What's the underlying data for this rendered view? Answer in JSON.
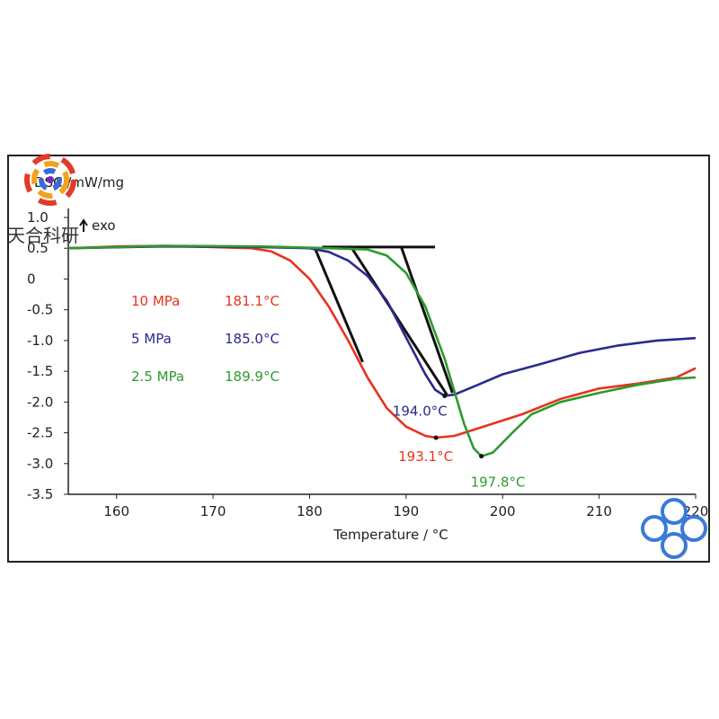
{
  "watermark": {
    "text": "天合科研"
  },
  "chart_data": {
    "type": "line",
    "title": "",
    "ylabel": "DSC /mW/mg",
    "xlabel": "Temperature / °C",
    "exo_label": "exo",
    "xlim": [
      155,
      220
    ],
    "ylim": [
      -3.5,
      1.0
    ],
    "x_ticks": [
      160,
      170,
      180,
      190,
      200,
      210,
      220
    ],
    "x_tick_labels": [
      "160",
      "170",
      "180",
      "190",
      "200",
      "210",
      "220"
    ],
    "y_ticks": [
      1.0,
      0.5,
      0,
      -0.5,
      -1.0,
      -1.5,
      -2.0,
      -2.5,
      -3.0,
      -3.5
    ],
    "y_tick_labels": [
      "1.0",
      "0.5",
      "0",
      "-0.5",
      "-1.0",
      "-1.5",
      "-2.0",
      "-2.5",
      "-3.0",
      "-3.5"
    ],
    "grid": false,
    "legend": [
      {
        "pressure": "10 MPa",
        "onset": "181.1°C",
        "color": "#e8321e"
      },
      {
        "pressure": "5 MPa",
        "onset": "185.0°C",
        "color": "#2a2a8c"
      },
      {
        "pressure": "2.5 MPa",
        "onset": "189.9°C",
        "color": "#2e9a2e"
      }
    ],
    "series": [
      {
        "color": "#e8321e",
        "points": [
          [
            155,
            0.5
          ],
          [
            160,
            0.53
          ],
          [
            165,
            0.54
          ],
          [
            170,
            0.52
          ],
          [
            174,
            0.5
          ],
          [
            176,
            0.45
          ],
          [
            178,
            0.3
          ],
          [
            180,
            0.0
          ],
          [
            182,
            -0.45
          ],
          [
            184,
            -1.0
          ],
          [
            186,
            -1.6
          ],
          [
            188,
            -2.1
          ],
          [
            190,
            -2.4
          ],
          [
            192,
            -2.55
          ],
          [
            193.1,
            -2.58
          ],
          [
            195,
            -2.55
          ],
          [
            198,
            -2.4
          ],
          [
            202,
            -2.2
          ],
          [
            206,
            -1.95
          ],
          [
            210,
            -1.78
          ],
          [
            214,
            -1.7
          ],
          [
            218,
            -1.6
          ],
          [
            220,
            -1.45
          ]
        ]
      },
      {
        "color": "#2a2a8c",
        "points": [
          [
            155,
            0.5
          ],
          [
            165,
            0.53
          ],
          [
            175,
            0.52
          ],
          [
            180,
            0.5
          ],
          [
            182,
            0.44
          ],
          [
            184,
            0.3
          ],
          [
            186,
            0.05
          ],
          [
            188,
            -0.35
          ],
          [
            190,
            -0.95
          ],
          [
            192,
            -1.55
          ],
          [
            193,
            -1.8
          ],
          [
            194,
            -1.9
          ],
          [
            195,
            -1.88
          ],
          [
            197,
            -1.75
          ],
          [
            200,
            -1.55
          ],
          [
            204,
            -1.38
          ],
          [
            208,
            -1.2
          ],
          [
            212,
            -1.08
          ],
          [
            216,
            -1.0
          ],
          [
            220,
            -0.96
          ]
        ]
      },
      {
        "color": "#2e9a2e",
        "points": [
          [
            155,
            0.5
          ],
          [
            165,
            0.54
          ],
          [
            175,
            0.53
          ],
          [
            182,
            0.5
          ],
          [
            186,
            0.48
          ],
          [
            188,
            0.38
          ],
          [
            190,
            0.1
          ],
          [
            192,
            -0.45
          ],
          [
            194,
            -1.3
          ],
          [
            196,
            -2.35
          ],
          [
            197,
            -2.75
          ],
          [
            197.8,
            -2.88
          ],
          [
            199,
            -2.82
          ],
          [
            201,
            -2.5
          ],
          [
            203,
            -2.2
          ],
          [
            206,
            -2.0
          ],
          [
            210,
            -1.85
          ],
          [
            214,
            -1.72
          ],
          [
            218,
            -1.62
          ],
          [
            220,
            -1.6
          ]
        ]
      }
    ],
    "tangent_lines": [
      [
        [
          180.5,
          0.52
        ],
        [
          185.5,
          -1.35
        ]
      ],
      [
        [
          181.3,
          0.52
        ],
        [
          193.0,
          0.52
        ]
      ],
      [
        [
          184.3,
          0.52
        ],
        [
          194.3,
          -1.9
        ]
      ],
      [
        [
          189.5,
          0.52
        ],
        [
          194.8,
          -1.85
        ]
      ]
    ],
    "annotations": [
      {
        "text": "194.0°C",
        "x": 194.0,
        "y": -1.9,
        "color": "#2a2a8c"
      },
      {
        "text": "193.1°C",
        "x": 193.1,
        "y": -2.58,
        "color": "#e8321e"
      },
      {
        "text": "197.8°C",
        "x": 197.8,
        "y": -2.88,
        "color": "#2e9a2e"
      }
    ]
  }
}
